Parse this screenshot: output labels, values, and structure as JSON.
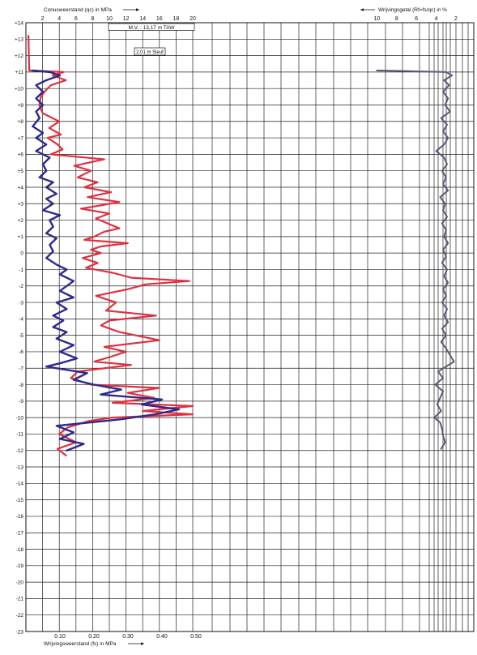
{
  "chart_data": {
    "type": "line",
    "y_axis": {
      "ticks": [
        "+14",
        "+13",
        "+12",
        "+11",
        "+10",
        "+9",
        "+8",
        "+7",
        "+6",
        "+5",
        "+4",
        "+3",
        "+2",
        "+1",
        "0",
        "-1",
        "-2",
        "-3",
        "-4",
        "-5",
        "-6",
        "-7",
        "-8",
        "-9",
        "-10",
        "-11",
        "-12",
        "-13",
        "-14",
        "-15",
        "-16",
        "-17",
        "-18",
        "-19",
        "-20",
        "-21",
        "-22",
        "-23"
      ],
      "range": [
        -23,
        14
      ]
    },
    "x_top_left": {
      "label": "Conusweerstand (qc) in MPa",
      "ticks": [
        "2",
        "4",
        "6",
        "8",
        "10",
        "12",
        "14",
        "16",
        "18",
        "20"
      ],
      "range": [
        0,
        20
      ]
    },
    "x_top_right": {
      "label": "Wrijvingsgetal (Rf=fs/qc) in %",
      "ticks": [
        "10",
        "8",
        "6",
        "4",
        "2"
      ]
    },
    "x_bottom": {
      "label": "Wrijvingsweerstand (fs) in MPa",
      "ticks": [
        "0.10",
        "0.20",
        "0.30",
        "0.40",
        "0.50"
      ]
    },
    "annotations": {
      "mv": "M.V. : 13,17 m TAW",
      "sleuf": "2.01 m Sleuf"
    },
    "colors": {
      "qc": "#e03040",
      "fs": "#2c2a8a",
      "rf": "#5a5a7a",
      "grid": "#222222"
    },
    "series": [
      {
        "key": "qc",
        "points": [
          [
            13.2,
            0.3
          ],
          [
            11.1,
            0.4
          ],
          [
            11.0,
            4.5
          ],
          [
            10.8,
            3.2
          ],
          [
            10.5,
            4.8
          ],
          [
            10.2,
            3.0
          ],
          [
            9.9,
            2.4
          ],
          [
            9.5,
            1.8
          ],
          [
            9.0,
            1.6
          ],
          [
            8.5,
            2.0
          ],
          [
            8.0,
            4.0
          ],
          [
            7.6,
            2.8
          ],
          [
            7.2,
            4.2
          ],
          [
            7.0,
            2.6
          ],
          [
            6.6,
            3.8
          ],
          [
            6.3,
            4.4
          ],
          [
            6.0,
            3.0
          ],
          [
            5.7,
            9.4
          ],
          [
            5.3,
            5.8
          ],
          [
            5.0,
            7.8
          ],
          [
            4.6,
            6.2
          ],
          [
            4.3,
            8.6
          ],
          [
            4.0,
            7.0
          ],
          [
            3.7,
            10.2
          ],
          [
            3.4,
            7.4
          ],
          [
            3.1,
            11.2
          ],
          [
            2.9,
            9.0
          ],
          [
            2.7,
            6.6
          ],
          [
            2.4,
            10.0
          ],
          [
            2.1,
            8.4
          ],
          [
            1.8,
            9.8
          ],
          [
            1.5,
            11.2
          ],
          [
            1.3,
            9.4
          ],
          [
            1.0,
            8.2
          ],
          [
            0.8,
            7.0
          ],
          [
            0.6,
            12.2
          ],
          [
            0.4,
            9.0
          ],
          [
            0.2,
            7.8
          ],
          [
            0.0,
            9.0
          ],
          [
            -0.3,
            6.8
          ],
          [
            -0.6,
            8.6
          ],
          [
            -0.9,
            7.2
          ],
          [
            -1.2,
            10.4
          ],
          [
            -1.5,
            12.6
          ],
          [
            -1.7,
            19.6
          ],
          [
            -1.9,
            14.4
          ],
          [
            -2.2,
            12.2
          ],
          [
            -2.6,
            8.4
          ],
          [
            -3.0,
            10.8
          ],
          [
            -3.5,
            9.6
          ],
          [
            -3.8,
            15.6
          ],
          [
            -4.1,
            10.0
          ],
          [
            -4.4,
            9.0
          ],
          [
            -4.8,
            11.2
          ],
          [
            -5.3,
            16.0
          ],
          [
            -5.7,
            9.4
          ],
          [
            -6.0,
            12.0
          ],
          [
            -6.3,
            10.2
          ],
          [
            -6.6,
            8.2
          ],
          [
            -6.8,
            12.6
          ],
          [
            -7.2,
            6.2
          ],
          [
            -7.6,
            5.4
          ],
          [
            -8.0,
            7.8
          ],
          [
            -8.2,
            16.0
          ],
          [
            -8.5,
            12.2
          ],
          [
            -8.8,
            15.4
          ],
          [
            -9.1,
            10.4
          ],
          [
            -9.3,
            20.0
          ],
          [
            -9.6,
            14.0
          ],
          [
            -9.8,
            20.0
          ],
          [
            -10.0,
            10.4
          ],
          [
            -10.2,
            7.6
          ],
          [
            -10.6,
            5.0
          ],
          [
            -11.0,
            4.0
          ],
          [
            -11.5,
            6.0
          ],
          [
            -11.9,
            3.8
          ],
          [
            -12.3,
            4.8
          ]
        ]
      },
      {
        "key": "fs",
        "points": [
          [
            11.1,
            0.02
          ],
          [
            11.0,
            0.07
          ],
          [
            10.8,
            0.1
          ],
          [
            10.5,
            0.06
          ],
          [
            10.2,
            0.03
          ],
          [
            9.8,
            0.05
          ],
          [
            9.4,
            0.03
          ],
          [
            9.0,
            0.05
          ],
          [
            8.6,
            0.03
          ],
          [
            8.2,
            0.04
          ],
          [
            7.7,
            0.02
          ],
          [
            7.3,
            0.05
          ],
          [
            7.0,
            0.03
          ],
          [
            6.6,
            0.06
          ],
          [
            6.2,
            0.03
          ],
          [
            5.8,
            0.07
          ],
          [
            5.4,
            0.05
          ],
          [
            5.0,
            0.06
          ],
          [
            4.6,
            0.04
          ],
          [
            4.3,
            0.08
          ],
          [
            4.0,
            0.06
          ],
          [
            3.6,
            0.09
          ],
          [
            3.3,
            0.06
          ],
          [
            3.0,
            0.08
          ],
          [
            2.6,
            0.05
          ],
          [
            2.3,
            0.1
          ],
          [
            2.0,
            0.07
          ],
          [
            1.6,
            0.08
          ],
          [
            1.2,
            0.06
          ],
          [
            0.9,
            0.09
          ],
          [
            0.5,
            0.07
          ],
          [
            0.1,
            0.08
          ],
          [
            -0.3,
            0.06
          ],
          [
            -0.7,
            0.09
          ],
          [
            -1.0,
            0.12
          ],
          [
            -1.3,
            0.1
          ],
          [
            -1.7,
            0.14
          ],
          [
            -2.0,
            0.12
          ],
          [
            -2.3,
            0.1
          ],
          [
            -2.7,
            0.14
          ],
          [
            -3.0,
            0.09
          ],
          [
            -3.4,
            0.12
          ],
          [
            -3.8,
            0.08
          ],
          [
            -4.1,
            0.11
          ],
          [
            -4.5,
            0.08
          ],
          [
            -4.8,
            0.12
          ],
          [
            -5.2,
            0.09
          ],
          [
            -5.6,
            0.14
          ],
          [
            -6.0,
            0.1
          ],
          [
            -6.4,
            0.15
          ],
          [
            -6.7,
            0.1
          ],
          [
            -6.9,
            0.06
          ],
          [
            -7.3,
            0.18
          ],
          [
            -7.7,
            0.14
          ],
          [
            -8.0,
            0.2
          ],
          [
            -8.3,
            0.28
          ],
          [
            -8.6,
            0.22
          ],
          [
            -8.9,
            0.4
          ],
          [
            -9.2,
            0.34
          ],
          [
            -9.5,
            0.45
          ],
          [
            -9.8,
            0.38
          ],
          [
            -10.1,
            0.28
          ],
          [
            -10.5,
            0.09
          ],
          [
            -10.9,
            0.14
          ],
          [
            -11.3,
            0.1
          ],
          [
            -11.6,
            0.17
          ],
          [
            -12.0,
            0.12
          ]
        ]
      },
      {
        "key": "rf",
        "points": [
          [
            11.1,
            10.0
          ],
          [
            11.0,
            3.0
          ],
          [
            10.8,
            2.4
          ],
          [
            10.5,
            3.2
          ],
          [
            10.2,
            2.7
          ],
          [
            9.8,
            3.3
          ],
          [
            9.4,
            2.8
          ],
          [
            9.0,
            3.1
          ],
          [
            8.6,
            2.6
          ],
          [
            8.2,
            3.5
          ],
          [
            7.8,
            2.9
          ],
          [
            7.4,
            3.3
          ],
          [
            7.0,
            2.8
          ],
          [
            6.6,
            3.2
          ],
          [
            6.2,
            4.0
          ],
          [
            5.8,
            3.2
          ],
          [
            5.4,
            2.9
          ],
          [
            5.0,
            3.4
          ],
          [
            4.6,
            3.0
          ],
          [
            4.2,
            3.3
          ],
          [
            3.8,
            2.8
          ],
          [
            3.4,
            3.6
          ],
          [
            3.0,
            3.1
          ],
          [
            2.6,
            3.3
          ],
          [
            2.2,
            2.9
          ],
          [
            1.8,
            3.4
          ],
          [
            1.4,
            3.0
          ],
          [
            1.0,
            3.2
          ],
          [
            0.6,
            2.8
          ],
          [
            0.2,
            3.3
          ],
          [
            -0.2,
            3.0
          ],
          [
            -0.6,
            3.4
          ],
          [
            -1.0,
            2.9
          ],
          [
            -1.4,
            3.2
          ],
          [
            -1.8,
            2.8
          ],
          [
            -2.2,
            3.3
          ],
          [
            -2.6,
            3.0
          ],
          [
            -3.0,
            3.4
          ],
          [
            -3.4,
            2.9
          ],
          [
            -3.8,
            3.2
          ],
          [
            -4.2,
            2.8
          ],
          [
            -4.6,
            3.4
          ],
          [
            -5.0,
            3.0
          ],
          [
            -5.4,
            3.5
          ],
          [
            -5.8,
            3.0
          ],
          [
            -6.2,
            2.6
          ],
          [
            -6.6,
            2.2
          ],
          [
            -6.9,
            3.0
          ],
          [
            -7.2,
            3.8
          ],
          [
            -7.6,
            3.3
          ],
          [
            -8.0,
            4.1
          ],
          [
            -8.4,
            3.3
          ],
          [
            -8.8,
            3.6
          ],
          [
            -9.2,
            3.9
          ],
          [
            -9.6,
            3.5
          ],
          [
            -10.0,
            4.2
          ],
          [
            -10.3,
            3.6
          ],
          [
            -10.7,
            3.4
          ],
          [
            -11.1,
            3.3
          ],
          [
            -11.5,
            3.1
          ],
          [
            -11.9,
            3.5
          ]
        ]
      }
    ]
  }
}
